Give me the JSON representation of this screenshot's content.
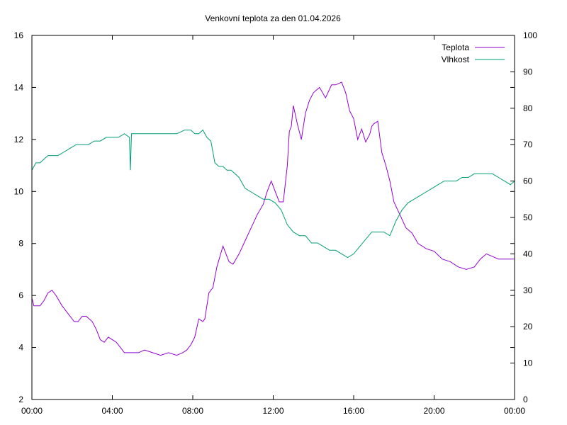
{
  "chart_data": {
    "type": "line",
    "title": "Venkovní teplota za den 01.04.2026",
    "xlabel": "",
    "ylabel": "",
    "y2label": "",
    "x_ticks": [
      "00:00",
      "04:00",
      "08:00",
      "12:00",
      "16:00",
      "20:00",
      "00:00"
    ],
    "xlim": [
      0,
      24
    ],
    "ylim": [
      2,
      16
    ],
    "y_ticks": [
      2,
      4,
      6,
      8,
      10,
      12,
      14,
      16
    ],
    "y2lim": [
      0,
      100
    ],
    "y2_ticks": [
      0,
      10,
      20,
      30,
      40,
      50,
      60,
      70,
      80,
      90,
      100
    ],
    "grid": false,
    "legend_position": "top-right",
    "series": [
      {
        "name": "Teplota",
        "axis": "left",
        "color": "#9400d3",
        "x": [
          0,
          0.1,
          0.2,
          0.4,
          0.6,
          0.8,
          1.0,
          1.2,
          1.5,
          1.8,
          2.1,
          2.3,
          2.5,
          2.7,
          3.0,
          3.2,
          3.4,
          3.6,
          3.8,
          4.0,
          4.2,
          4.4,
          4.6,
          4.8,
          5.0,
          5.3,
          5.6,
          6.0,
          6.4,
          6.8,
          7.2,
          7.5,
          7.7,
          7.9,
          8.1,
          8.3,
          8.5,
          8.6,
          8.8,
          9.0,
          9.2,
          9.5,
          9.8,
          10.0,
          10.3,
          10.6,
          10.9,
          11.2,
          11.5,
          11.7,
          11.9,
          12.1,
          12.3,
          12.5,
          12.7,
          12.8,
          12.9,
          13.0,
          13.2,
          13.4,
          13.6,
          13.8,
          14.0,
          14.3,
          14.6,
          14.9,
          15.1,
          15.4,
          15.6,
          15.8,
          16.0,
          16.2,
          16.4,
          16.6,
          16.8,
          16.9,
          17.0,
          17.2,
          17.4,
          17.6,
          17.8,
          18.0,
          18.3,
          18.6,
          18.9,
          19.2,
          19.6,
          20.0,
          20.4,
          20.8,
          21.2,
          21.6,
          22.0,
          22.3,
          22.6,
          22.9,
          23.2,
          23.5,
          23.8,
          24.0
        ],
        "values": [
          5.9,
          5.6,
          5.6,
          5.6,
          5.8,
          6.1,
          6.2,
          6.0,
          5.6,
          5.3,
          5.0,
          5.0,
          5.2,
          5.2,
          5.0,
          4.7,
          4.3,
          4.2,
          4.4,
          4.3,
          4.2,
          4.0,
          3.8,
          3.8,
          3.8,
          3.8,
          3.9,
          3.8,
          3.7,
          3.8,
          3.7,
          3.8,
          3.9,
          4.1,
          4.4,
          5.1,
          5.0,
          5.1,
          6.1,
          6.3,
          7.1,
          7.9,
          7.3,
          7.2,
          7.6,
          8.1,
          8.6,
          9.1,
          9.5,
          10.0,
          10.4,
          10.0,
          9.6,
          9.6,
          11.0,
          12.3,
          12.5,
          13.3,
          12.6,
          12.0,
          13.0,
          13.5,
          13.8,
          14.0,
          13.6,
          14.1,
          14.1,
          14.2,
          13.8,
          13.1,
          12.8,
          12.0,
          12.4,
          11.9,
          12.2,
          12.5,
          12.6,
          12.7,
          11.5,
          11.0,
          10.4,
          9.6,
          9.1,
          8.6,
          8.4,
          8.0,
          7.8,
          7.7,
          7.4,
          7.3,
          7.1,
          7.0,
          7.1,
          7.4,
          7.6,
          7.5,
          7.4,
          7.4,
          7.4,
          7.4
        ]
      },
      {
        "name": "Vlhkost",
        "axis": "right",
        "color": "#009e73",
        "x": [
          0,
          0.2,
          0.4,
          0.6,
          0.8,
          1.0,
          1.3,
          1.6,
          1.9,
          2.2,
          2.5,
          2.8,
          3.1,
          3.4,
          3.7,
          4.0,
          4.3,
          4.6,
          4.85,
          4.9,
          4.95,
          5.0,
          5.3,
          5.6,
          6.0,
          6.4,
          6.8,
          7.2,
          7.6,
          7.9,
          8.1,
          8.3,
          8.5,
          8.7,
          8.9,
          9.1,
          9.3,
          9.5,
          9.7,
          9.9,
          10.1,
          10.3,
          10.6,
          10.9,
          11.2,
          11.5,
          11.8,
          12.1,
          12.4,
          12.7,
          13.0,
          13.3,
          13.6,
          13.9,
          14.2,
          14.5,
          14.8,
          15.1,
          15.4,
          15.7,
          16.0,
          16.3,
          16.6,
          16.9,
          17.2,
          17.5,
          17.8,
          18.1,
          18.4,
          18.7,
          19.0,
          19.3,
          19.6,
          19.9,
          20.2,
          20.5,
          20.8,
          21.1,
          21.4,
          21.7,
          22.0,
          22.3,
          22.6,
          22.9,
          23.2,
          23.5,
          23.8,
          24.0
        ],
        "values": [
          63,
          65,
          65,
          66,
          67,
          67,
          67,
          68,
          69,
          70,
          70,
          70,
          71,
          71,
          72,
          72,
          72,
          73,
          72,
          63,
          73,
          73,
          73,
          73,
          73,
          73,
          73,
          73,
          74,
          74,
          73,
          73,
          74,
          72,
          71,
          65,
          64,
          64,
          63,
          63,
          62,
          61,
          58,
          57,
          56,
          55,
          55,
          54,
          52,
          48,
          46,
          45,
          45,
          43,
          43,
          42,
          41,
          41,
          40,
          39,
          40,
          42,
          44,
          46,
          46,
          46,
          45,
          49,
          52,
          54,
          55,
          56,
          57,
          58,
          59,
          60,
          60,
          60,
          61,
          61,
          62,
          62,
          62,
          62,
          61,
          60,
          59,
          60
        ]
      }
    ]
  }
}
